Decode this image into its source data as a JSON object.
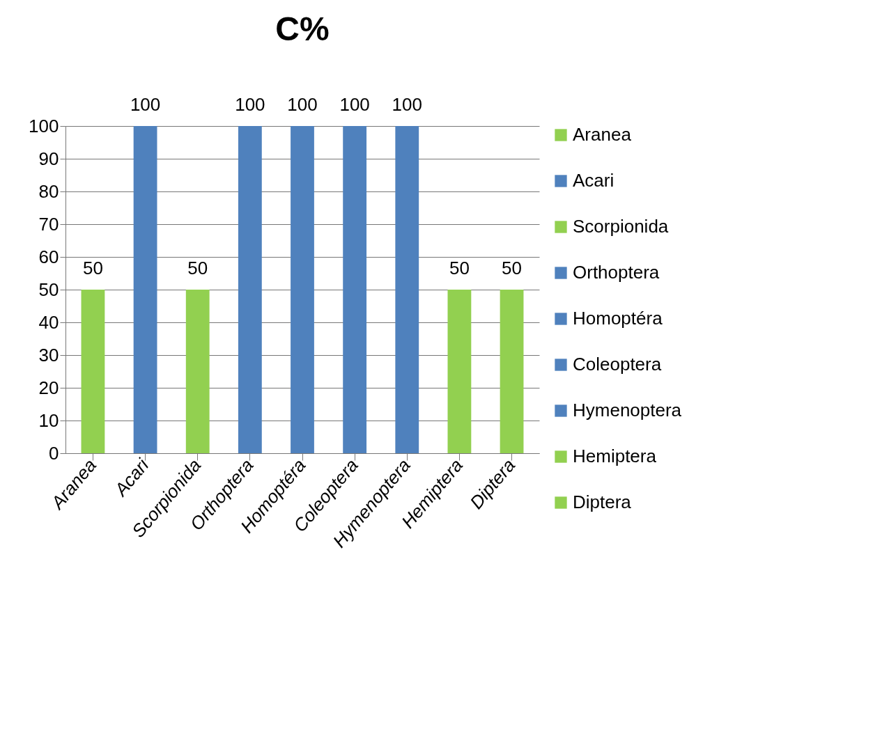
{
  "chart_data": {
    "type": "bar",
    "title": "C%",
    "categories": [
      "Aranea",
      "Acari",
      "Scorpionida",
      "Orthoptera",
      "Homoptéra",
      "Coleoptera",
      "Hymenoptera",
      "Hemiptera",
      "Diptera"
    ],
    "stacked": true,
    "series": [
      {
        "name": "Aranea",
        "color": "#92d050",
        "values": [
          50,
          null,
          null,
          null,
          null,
          null,
          null,
          null,
          null
        ]
      },
      {
        "name": "Acari",
        "color": "#4f81bd",
        "values": [
          null,
          100,
          null,
          null,
          null,
          null,
          null,
          null,
          null
        ]
      },
      {
        "name": "Scorpionida",
        "color": "#92d050",
        "values": [
          null,
          null,
          50,
          null,
          null,
          null,
          null,
          null,
          null
        ]
      },
      {
        "name": "Orthoptera",
        "color": "#4f81bd",
        "values": [
          null,
          null,
          null,
          100,
          null,
          null,
          null,
          null,
          null
        ]
      },
      {
        "name": "Homoptéra",
        "color": "#4f81bd",
        "values": [
          null,
          null,
          null,
          null,
          100,
          null,
          null,
          null,
          null
        ]
      },
      {
        "name": "Coleoptera",
        "color": "#4f81bd",
        "values": [
          null,
          null,
          null,
          null,
          null,
          100,
          null,
          null,
          null
        ]
      },
      {
        "name": "Hymenoptera",
        "color": "#4f81bd",
        "values": [
          null,
          null,
          null,
          null,
          null,
          null,
          100,
          null,
          null
        ]
      },
      {
        "name": "Hemiptera",
        "color": "#92d050",
        "values": [
          null,
          null,
          null,
          null,
          null,
          null,
          null,
          50,
          null
        ]
      },
      {
        "name": "Diptera",
        "color": "#92d050",
        "values": [
          null,
          null,
          null,
          null,
          null,
          null,
          null,
          null,
          50
        ]
      }
    ],
    "ylim": [
      0,
      100
    ],
    "yticks": [
      0,
      10,
      20,
      30,
      40,
      50,
      60,
      70,
      80,
      90,
      100
    ],
    "grid": "y",
    "legend": "right",
    "data_labels": true
  }
}
